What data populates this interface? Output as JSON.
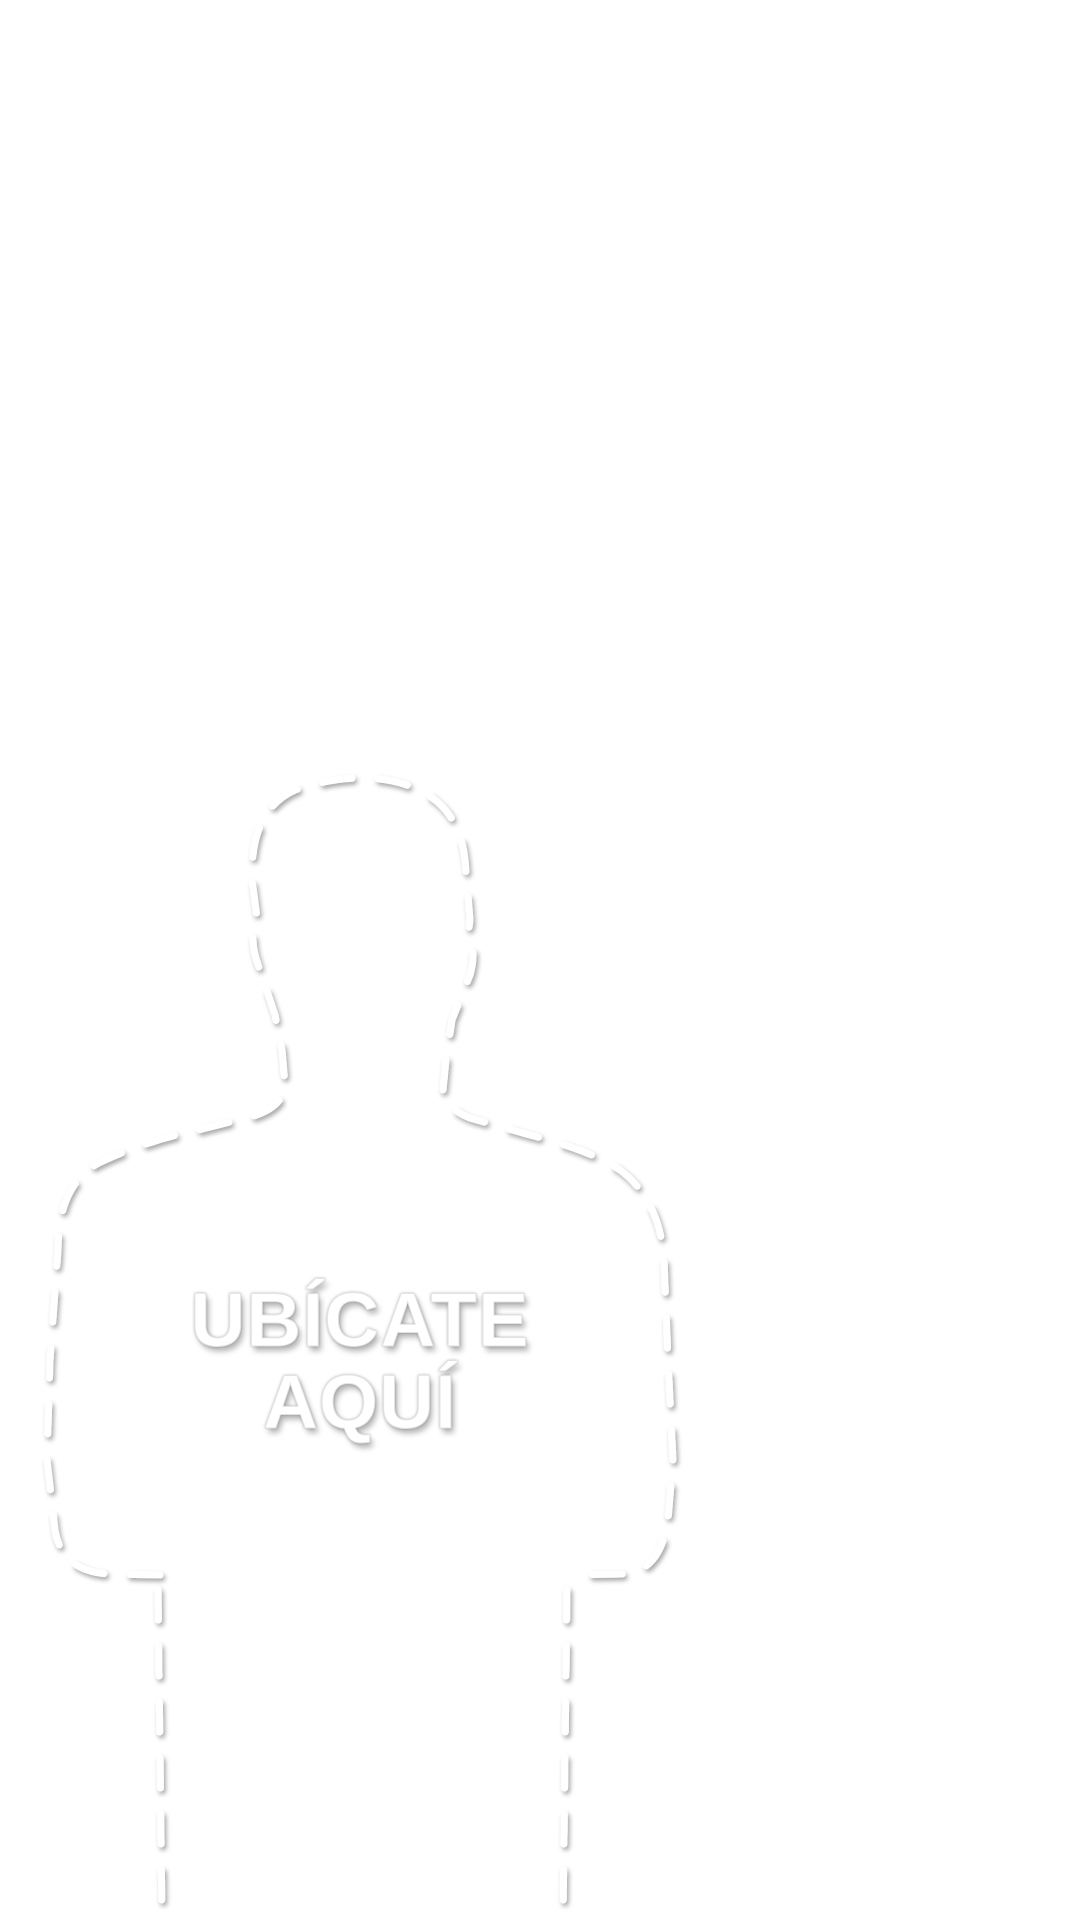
{
  "guide": {
    "line1": "UBÍCATE",
    "line2": "AQUÍ",
    "outline_icon": "person-outline-icon",
    "outline_color": "#ffffff",
    "background_color": "#ffffff"
  }
}
